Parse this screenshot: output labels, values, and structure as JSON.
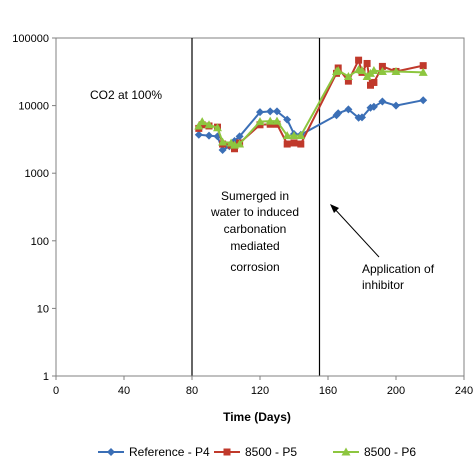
{
  "chart_data": {
    "type": "line",
    "title": "",
    "xlabel": "Time (Days)",
    "ylabel": "",
    "xlim": [
      0,
      240
    ],
    "ylim": [
      1,
      100000
    ],
    "y_scale": "log",
    "x_ticks": [
      "0",
      "40",
      "80",
      "120",
      "160",
      "200",
      "240"
    ],
    "y_ticks": [
      "1",
      "10",
      "100",
      "1000",
      "10000",
      "100000"
    ],
    "legend_position": "bottom",
    "annotations": {
      "co2": "CO2 at 100%",
      "submerged": [
        "Sumerged in",
        "water to induced",
        "carbonation",
        "mediated",
        "corrosion"
      ],
      "inhibitor": [
        "Application of",
        "inhibitor"
      ]
    },
    "vertical_lines": [
      80,
      155
    ],
    "series": [
      {
        "name": "Reference - P4",
        "color": "#3b6fb6",
        "marker": "diamond",
        "points": [
          [
            84,
            3700
          ],
          [
            90,
            3600
          ],
          [
            95,
            3500
          ],
          [
            98,
            2200
          ],
          [
            102,
            2500
          ],
          [
            105,
            3000
          ],
          [
            108,
            3500
          ],
          [
            120,
            8000
          ],
          [
            126,
            8200
          ],
          [
            130,
            8200
          ],
          [
            136,
            6200
          ],
          [
            140,
            3800
          ],
          [
            144,
            3700
          ],
          [
            165,
            7200
          ],
          [
            166,
            7700
          ],
          [
            172,
            8800
          ],
          [
            178,
            6600
          ],
          [
            180,
            6700
          ],
          [
            185,
            9300
          ],
          [
            187,
            9600
          ],
          [
            192,
            11500
          ],
          [
            200,
            10000
          ],
          [
            216,
            12000
          ]
        ]
      },
      {
        "name": "8500 - P5",
        "color": "#c0392b",
        "marker": "square",
        "points": [
          [
            84,
            4600
          ],
          [
            86,
            5200
          ],
          [
            90,
            5000
          ],
          [
            95,
            4800
          ],
          [
            98,
            2700
          ],
          [
            103,
            2600
          ],
          [
            105,
            2300
          ],
          [
            108,
            2800
          ],
          [
            120,
            5200
          ],
          [
            126,
            5300
          ],
          [
            130,
            5300
          ],
          [
            136,
            2700
          ],
          [
            140,
            2800
          ],
          [
            144,
            2700
          ],
          [
            165,
            30000
          ],
          [
            166,
            36000
          ],
          [
            172,
            23000
          ],
          [
            178,
            47000
          ],
          [
            180,
            31000
          ],
          [
            183,
            42000
          ],
          [
            185,
            20000
          ],
          [
            187,
            22000
          ],
          [
            192,
            38000
          ],
          [
            200,
            32000
          ],
          [
            216,
            39000
          ]
        ]
      },
      {
        "name": "8500 - P6",
        "color": "#8dc63f",
        "marker": "triangle",
        "points": [
          [
            84,
            5000
          ],
          [
            86,
            5800
          ],
          [
            90,
            5200
          ],
          [
            95,
            4700
          ],
          [
            98,
            2900
          ],
          [
            103,
            2800
          ],
          [
            105,
            2600
          ],
          [
            108,
            2700
          ],
          [
            120,
            5800
          ],
          [
            126,
            5900
          ],
          [
            130,
            5900
          ],
          [
            136,
            3600
          ],
          [
            140,
            3600
          ],
          [
            144,
            3600
          ],
          [
            165,
            32000
          ],
          [
            166,
            33000
          ],
          [
            172,
            27000
          ],
          [
            178,
            34000
          ],
          [
            180,
            33000
          ],
          [
            183,
            27000
          ],
          [
            185,
            30000
          ],
          [
            187,
            33000
          ],
          [
            192,
            32000
          ],
          [
            200,
            32000
          ],
          [
            216,
            31000
          ]
        ]
      }
    ]
  }
}
